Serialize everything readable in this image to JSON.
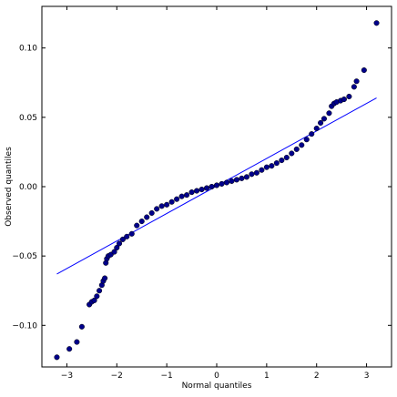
{
  "chart_data": {
    "type": "scatter",
    "title": "",
    "xlabel": "Normal quantiles",
    "ylabel": "Observed quantiles",
    "xlim": [
      -3.5,
      3.5
    ],
    "ylim": [
      -0.13,
      0.13
    ],
    "grid": false,
    "x_ticks": [
      -3,
      -2,
      -1,
      0,
      1,
      2,
      3
    ],
    "x_tick_labels": [
      "−3",
      "−2",
      "−1",
      "0",
      "1",
      "2",
      "3"
    ],
    "y_ticks": [
      -0.1,
      -0.05,
      0.0,
      0.05,
      0.1
    ],
    "y_tick_labels": [
      "−0.10",
      "−0.05",
      "0.00",
      "0.05",
      "0.10"
    ],
    "marker_color": "#00008b",
    "line_color": "#0000ff",
    "reference_line": {
      "x": [
        -3.2,
        3.2
      ],
      "y": [
        -0.063,
        0.064
      ]
    },
    "series": [
      {
        "points": [
          [
            -3.2,
            -0.123
          ],
          [
            -2.95,
            -0.117
          ],
          [
            -2.8,
            -0.112
          ],
          [
            -2.7,
            -0.101
          ],
          [
            -2.55,
            -0.085
          ],
          [
            -2.5,
            -0.083
          ],
          [
            -2.45,
            -0.082
          ],
          [
            -2.4,
            -0.079
          ],
          [
            -2.35,
            -0.075
          ],
          [
            -2.3,
            -0.071
          ],
          [
            -2.27,
            -0.068
          ],
          [
            -2.24,
            -0.066
          ],
          [
            -2.22,
            -0.055
          ],
          [
            -2.2,
            -0.052
          ],
          [
            -2.17,
            -0.05
          ],
          [
            -2.12,
            -0.049
          ],
          [
            -2.05,
            -0.047
          ],
          [
            -2.0,
            -0.044
          ],
          [
            -1.95,
            -0.041
          ],
          [
            -1.88,
            -0.038
          ],
          [
            -1.8,
            -0.036
          ],
          [
            -1.7,
            -0.034
          ],
          [
            -1.6,
            -0.028
          ],
          [
            -1.5,
            -0.025
          ],
          [
            -1.4,
            -0.022
          ],
          [
            -1.3,
            -0.019
          ],
          [
            -1.2,
            -0.016
          ],
          [
            -1.1,
            -0.014
          ],
          [
            -1.0,
            -0.013
          ],
          [
            -0.9,
            -0.011
          ],
          [
            -0.8,
            -0.009
          ],
          [
            -0.7,
            -0.007
          ],
          [
            -0.6,
            -0.006
          ],
          [
            -0.5,
            -0.004
          ],
          [
            -0.4,
            -0.003
          ],
          [
            -0.3,
            -0.002
          ],
          [
            -0.2,
            -0.001
          ],
          [
            -0.1,
            0.0
          ],
          [
            0.0,
            0.001
          ],
          [
            0.1,
            0.002
          ],
          [
            0.2,
            0.003
          ],
          [
            0.3,
            0.004
          ],
          [
            0.4,
            0.005
          ],
          [
            0.5,
            0.006
          ],
          [
            0.6,
            0.007
          ],
          [
            0.7,
            0.009
          ],
          [
            0.8,
            0.01
          ],
          [
            0.9,
            0.012
          ],
          [
            1.0,
            0.014
          ],
          [
            1.1,
            0.015
          ],
          [
            1.2,
            0.017
          ],
          [
            1.3,
            0.019
          ],
          [
            1.4,
            0.021
          ],
          [
            1.5,
            0.024
          ],
          [
            1.6,
            0.027
          ],
          [
            1.7,
            0.03
          ],
          [
            1.8,
            0.034
          ],
          [
            1.9,
            0.038
          ],
          [
            2.0,
            0.042
          ],
          [
            2.08,
            0.046
          ],
          [
            2.15,
            0.049
          ],
          [
            2.25,
            0.053
          ],
          [
            2.3,
            0.058
          ],
          [
            2.35,
            0.06
          ],
          [
            2.4,
            0.061
          ],
          [
            2.48,
            0.062
          ],
          [
            2.55,
            0.063
          ],
          [
            2.65,
            0.065
          ],
          [
            2.75,
            0.072
          ],
          [
            2.8,
            0.076
          ],
          [
            2.95,
            0.084
          ],
          [
            3.2,
            0.118
          ]
        ]
      }
    ]
  }
}
